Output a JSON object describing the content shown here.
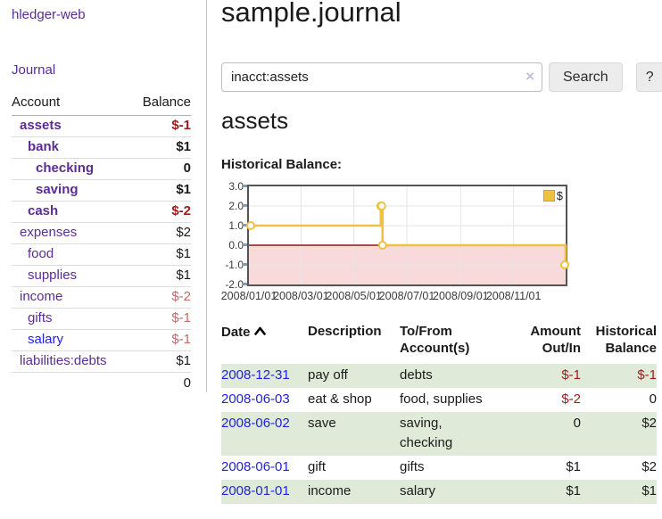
{
  "app": {
    "brand": "hledger-web",
    "nav_journal": "Journal"
  },
  "sidebar": {
    "header": {
      "account": "Account",
      "balance": "Balance"
    },
    "accounts": [
      {
        "name": "assets",
        "level": 1,
        "bold": true,
        "balance": "$-1"
      },
      {
        "name": "bank",
        "level": 2,
        "bold": true,
        "balance": "$1"
      },
      {
        "name": "checking",
        "level": 3,
        "bold": true,
        "balance": "0"
      },
      {
        "name": "saving",
        "level": 3,
        "bold": true,
        "balance": "$1"
      },
      {
        "name": "cash",
        "level": 2,
        "bold": true,
        "balance": "$-2"
      },
      {
        "name": "expenses",
        "level": 1,
        "bold": false,
        "balance": "$2"
      },
      {
        "name": "food",
        "level": 2,
        "bold": false,
        "balance": "$1"
      },
      {
        "name": "supplies",
        "level": 2,
        "bold": false,
        "balance": "$1"
      },
      {
        "name": "income",
        "level": 1,
        "bold": false,
        "balance": "$-2"
      },
      {
        "name": "gifts",
        "level": 2,
        "bold": false,
        "balance": "$-1"
      },
      {
        "name": "salary",
        "level": 2,
        "bold": false,
        "balance": "$-1",
        "unvisited": true
      },
      {
        "name": "liabilities:debts",
        "level": 1,
        "bold": false,
        "balance": "$1"
      }
    ],
    "total": "0"
  },
  "main": {
    "title": "sample.journal",
    "search": {
      "value": "inacct:assets",
      "clear_icon": "×",
      "button_label": "Search",
      "help_label": "?"
    },
    "register": {
      "heading": "assets",
      "chart_label": "Historical Balance:",
      "sort_icon": "chevron-up"
    }
  },
  "table": {
    "columns": {
      "date": "Date",
      "description": "Description",
      "accounts": "To/From Account(s)",
      "amount": "Amount Out/In",
      "balance": "Historical Balance"
    },
    "rows": [
      {
        "date": "2008-12-31",
        "description": "pay off",
        "accounts": "debts",
        "amount": "$-1",
        "balance": "$-1"
      },
      {
        "date": "2008-06-03",
        "description": "eat & shop",
        "accounts": "food, supplies",
        "amount": "$-2",
        "balance": "0"
      },
      {
        "date": "2008-06-02",
        "description": "save",
        "accounts": "saving, checking",
        "amount": "0",
        "balance": "$2"
      },
      {
        "date": "2008-06-01",
        "description": "gift",
        "accounts": "gifts",
        "amount": "$1",
        "balance": "$2"
      },
      {
        "date": "2008-01-01",
        "description": "income",
        "accounts": "salary",
        "amount": "$1",
        "balance": "$1"
      }
    ]
  },
  "chart_data": {
    "type": "line",
    "step": true,
    "title": "Historical Balance:",
    "xlabel": "",
    "ylabel": "",
    "x_range_days": [
      0,
      365
    ],
    "ylim": [
      -2,
      3
    ],
    "y_ticks": [
      3,
      2,
      1,
      0,
      -1,
      -2
    ],
    "x_ticks": [
      {
        "label": "2008/01/01",
        "day": 0
      },
      {
        "label": "2008/03/01",
        "day": 60
      },
      {
        "label": "2008/05/01",
        "day": 121
      },
      {
        "label": "2008/07/01",
        "day": 182
      },
      {
        "label": "2008/09/01",
        "day": 244
      },
      {
        "label": "2008/11/01",
        "day": 305
      }
    ],
    "series": [
      {
        "name": "$",
        "color": "#edc240",
        "points": [
          {
            "date": "2008-01-01",
            "day": 0,
            "value": 1
          },
          {
            "date": "2008-06-01",
            "day": 152,
            "value": 2
          },
          {
            "date": "2008-06-02",
            "day": 153,
            "value": 2
          },
          {
            "date": "2008-06-03",
            "day": 154,
            "value": 0
          },
          {
            "date": "2008-12-31",
            "day": 365,
            "value": -1
          }
        ]
      }
    ],
    "legend": {
      "label": "$",
      "position": "top-right"
    },
    "negative_region_fill": "#f9dada",
    "zero_line_color": "#8b1717",
    "grid_color": "#e5e5e5"
  },
  "colors": {
    "link_purple": "#5c2d91",
    "link_blue": "#2222dd",
    "negative_strong": "#9b1b1b",
    "negative_muted": "#c06a6a",
    "row_stripe_green": "#dfebd8",
    "chart_line_gold": "#edc240"
  }
}
